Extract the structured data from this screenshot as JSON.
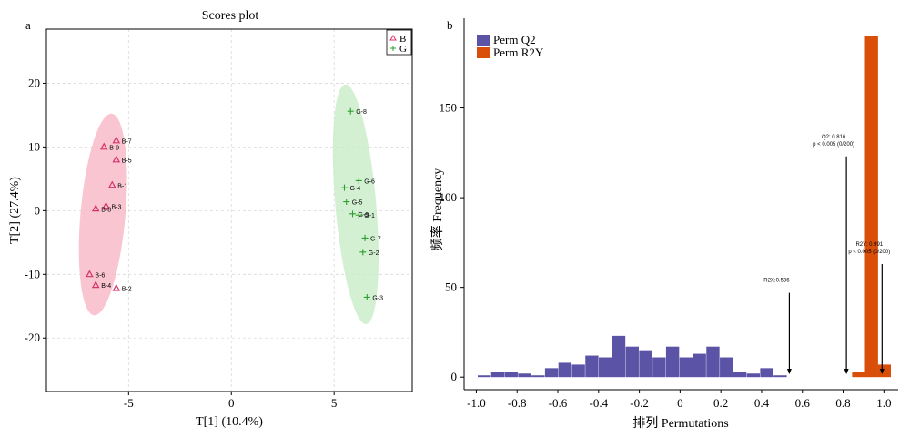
{
  "figure": {
    "panel_a_label": "a",
    "panel_b_label": "b"
  },
  "chart_data": [
    {
      "type": "scatter",
      "title": "Scores plot",
      "xlabel": "T[1] (10.4%)",
      "ylabel": "T[2] (27.4%)",
      "xlim": [
        -9.0,
        8.8
      ],
      "ylim": [
        -28.4,
        28.5
      ],
      "xticks": [
        -5,
        0,
        5
      ],
      "yticks": [
        20,
        10,
        0,
        -10,
        -20
      ],
      "xtick_labels": [
        "-5",
        "0",
        "5"
      ],
      "ytick_labels": [
        "20",
        "10",
        "0",
        "-10",
        "-20"
      ],
      "grid": true,
      "legend_position": "top-right",
      "series": [
        {
          "name": "B",
          "marker": "triangle",
          "color": "#d6336c",
          "ellipse_color": "#f7b6c6",
          "points": [
            {
              "label": "B-7",
              "x": -5.6,
              "y": 11.0
            },
            {
              "label": "B-9",
              "x": -6.2,
              "y": 10.0
            },
            {
              "label": "B-5",
              "x": -5.6,
              "y": 8.0
            },
            {
              "label": "B-1",
              "x": -5.8,
              "y": 4.0
            },
            {
              "label": "B-3",
              "x": -6.1,
              "y": 0.7
            },
            {
              "label": "B-8",
              "x": -6.6,
              "y": 0.3
            },
            {
              "label": "B-6",
              "x": -6.9,
              "y": -10.0
            },
            {
              "label": "B-4",
              "x": -6.6,
              "y": -11.7
            },
            {
              "label": "B-2",
              "x": -5.6,
              "y": -12.2
            }
          ]
        },
        {
          "name": "G",
          "marker": "plus",
          "color": "#2ca02c",
          "ellipse_color": "#c8ecc8",
          "points": [
            {
              "label": "G-8",
              "x": 5.8,
              "y": 15.6
            },
            {
              "label": "G-6",
              "x": 6.2,
              "y": 4.7
            },
            {
              "label": "G-4",
              "x": 5.5,
              "y": 3.6
            },
            {
              "label": "G-5",
              "x": 5.6,
              "y": 1.4
            },
            {
              "label": "G-9",
              "x": 5.9,
              "y": -0.5
            },
            {
              "label": "G-1",
              "x": 6.2,
              "y": -0.7
            },
            {
              "label": "G-7",
              "x": 6.5,
              "y": -4.3
            },
            {
              "label": "G-2",
              "x": 6.4,
              "y": -6.5
            },
            {
              "label": "G-3",
              "x": 6.6,
              "y": -13.6
            }
          ]
        }
      ]
    },
    {
      "type": "bar",
      "title": "",
      "xlabel": "排列 Permutations",
      "ylabel": "频率 Frequency",
      "xlim": [
        -1.06,
        1.07
      ],
      "ylim": [
        -7,
        200
      ],
      "xticks": [
        -1.0,
        -0.8,
        -0.6,
        -0.4,
        -0.2,
        0,
        0.2,
        0.4,
        0.6,
        0.8,
        1.0
      ],
      "xtick_labels": [
        "-1.0",
        "-0.8",
        "-0.6",
        "-0.4",
        "-0.2",
        "0",
        "0.2",
        "0.4",
        "0.6",
        "0.8",
        "1.0"
      ],
      "yticks": [
        0,
        50,
        100,
        150
      ],
      "ytick_labels": [
        "0",
        "50",
        "100",
        "150"
      ],
      "grid": false,
      "legend_position": "top-left",
      "bin_width": 0.066,
      "series": [
        {
          "name": "Perm Q2",
          "color": "#5b54a6",
          "bins": [
            {
              "x": -0.96,
              "count": 1
            },
            {
              "x": -0.894,
              "count": 3
            },
            {
              "x": -0.828,
              "count": 3
            },
            {
              "x": -0.762,
              "count": 2
            },
            {
              "x": -0.696,
              "count": 1
            },
            {
              "x": -0.63,
              "count": 5
            },
            {
              "x": -0.564,
              "count": 8
            },
            {
              "x": -0.498,
              "count": 7
            },
            {
              "x": -0.432,
              "count": 12
            },
            {
              "x": -0.366,
              "count": 11
            },
            {
              "x": -0.3,
              "count": 23
            },
            {
              "x": -0.234,
              "count": 17
            },
            {
              "x": -0.168,
              "count": 15
            },
            {
              "x": -0.102,
              "count": 11
            },
            {
              "x": -0.036,
              "count": 17
            },
            {
              "x": 0.03,
              "count": 11
            },
            {
              "x": 0.096,
              "count": 13
            },
            {
              "x": 0.162,
              "count": 17
            },
            {
              "x": 0.228,
              "count": 11
            },
            {
              "x": 0.294,
              "count": 3
            },
            {
              "x": 0.36,
              "count": 2
            },
            {
              "x": 0.426,
              "count": 5
            },
            {
              "x": 0.492,
              "count": 1
            }
          ]
        },
        {
          "name": "Perm R2Y",
          "color": "#d94f0a",
          "bins": [
            {
              "x": 0.877,
              "count": 3
            },
            {
              "x": 0.94,
              "count": 190
            },
            {
              "x": 1.003,
              "count": 7
            }
          ]
        }
      ],
      "annotations": [
        {
          "lines": [
            "R2X:0.536"
          ],
          "x": 0.536,
          "arrow_top_value": 47
        },
        {
          "lines": [
            "Q2: 0.816",
            "p < 0.005 (0/200)"
          ],
          "x": 0.816,
          "arrow_top_value": 123
        },
        {
          "lines": [
            "R2Y: 0.991",
            "p < 0.005 (0/200)"
          ],
          "x": 0.991,
          "arrow_top_value": 63
        }
      ]
    }
  ]
}
